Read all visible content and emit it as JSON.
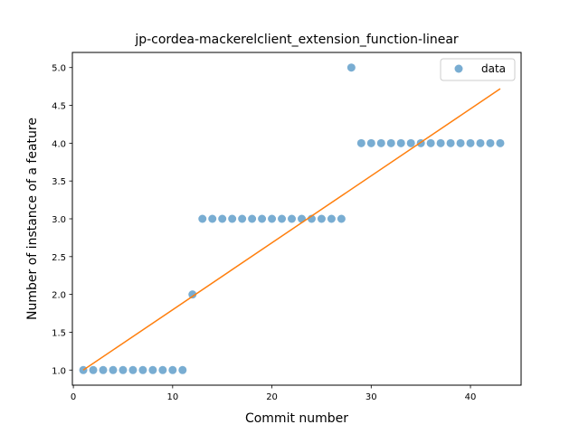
{
  "chart_data": {
    "type": "scatter",
    "title": "jp-cordea-mackerelclient_extension_function-linear",
    "xlabel": "Commit number",
    "ylabel": "Number of instance of a feature",
    "xlim": [
      -0.1,
      45.1
    ],
    "ylim": [
      0.8,
      5.2
    ],
    "xticks": [
      0,
      10,
      20,
      30,
      40
    ],
    "yticks": [
      1.0,
      1.5,
      2.0,
      2.5,
      3.0,
      3.5,
      4.0,
      4.5,
      5.0
    ],
    "xtick_labels": [
      "0",
      "10",
      "20",
      "30",
      "40"
    ],
    "ytick_labels": [
      "1.0",
      "1.5",
      "2.0",
      "2.5",
      "3.0",
      "3.5",
      "4.0",
      "4.5",
      "5.0"
    ],
    "grid": false,
    "legend": {
      "placement": "top-right",
      "entries": [
        "data"
      ]
    },
    "series": [
      {
        "name": "data",
        "kind": "scatter",
        "color": "#1f77b4",
        "x": [
          1,
          2,
          3,
          4,
          5,
          6,
          7,
          8,
          9,
          10,
          11,
          12,
          13,
          14,
          15,
          16,
          17,
          18,
          19,
          20,
          21,
          22,
          23,
          24,
          25,
          26,
          27,
          28,
          29,
          30,
          31,
          32,
          33,
          34,
          35,
          36,
          37,
          38,
          39,
          40,
          41,
          42,
          43
        ],
        "y": [
          1,
          1,
          1,
          1,
          1,
          1,
          1,
          1,
          1,
          1,
          1,
          2,
          3,
          3,
          3,
          3,
          3,
          3,
          3,
          3,
          3,
          3,
          3,
          3,
          3,
          3,
          3,
          5,
          4,
          4,
          4,
          4,
          4,
          4,
          4,
          4,
          4,
          4,
          4,
          4,
          4,
          4,
          4
        ]
      },
      {
        "kind": "line",
        "color": "#ff7f0e",
        "x": [
          1,
          43
        ],
        "y": [
          1.0,
          4.72
        ]
      }
    ]
  }
}
